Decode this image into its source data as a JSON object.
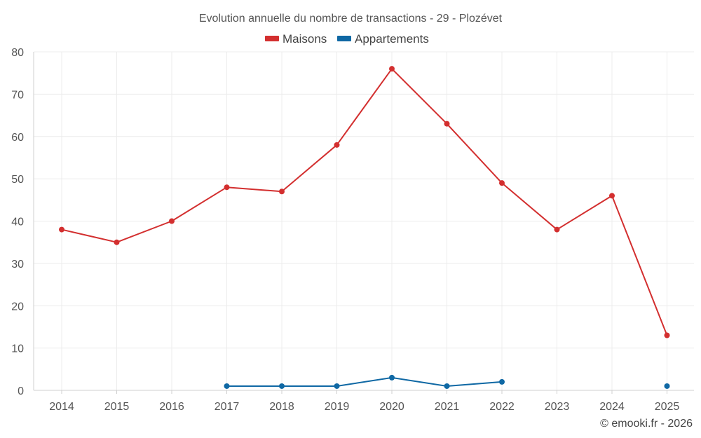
{
  "chart_data": {
    "type": "line",
    "title": "Evolution annuelle du nombre de transactions - 29 - Plozévet",
    "categories": [
      "2014",
      "2015",
      "2016",
      "2017",
      "2018",
      "2019",
      "2020",
      "2021",
      "2022",
      "2023",
      "2024",
      "2025"
    ],
    "ylim": [
      0,
      80
    ],
    "yticks": [
      0,
      10,
      20,
      30,
      40,
      50,
      60,
      70,
      80
    ],
    "grid": true,
    "legend_position": "top-center",
    "series": [
      {
        "name": "Maisons",
        "color": "#d32f2f",
        "values": [
          38,
          35,
          40,
          48,
          47,
          58,
          76,
          63,
          49,
          38,
          46,
          13
        ]
      },
      {
        "name": "Appartements",
        "color": "#0f68a4",
        "values": [
          null,
          null,
          null,
          1,
          1,
          1,
          3,
          1,
          2,
          null,
          null,
          1
        ]
      }
    ]
  },
  "footer": {
    "credit": "© emooki.fr - 2026"
  }
}
